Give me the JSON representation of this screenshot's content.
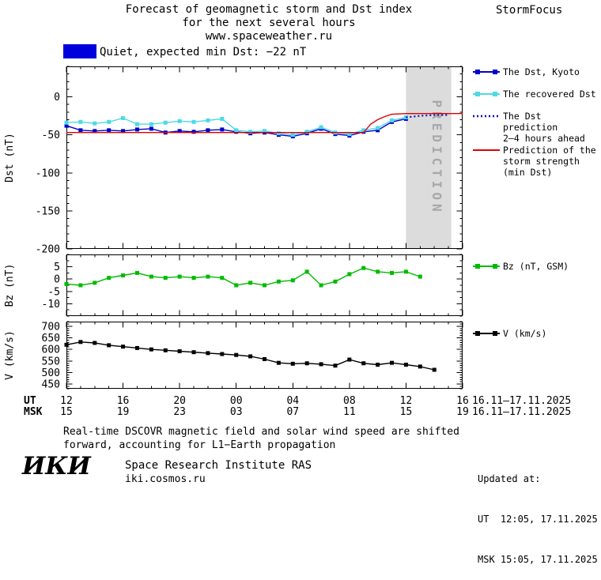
{
  "header": {
    "title_line1": "Forecast of geomagnetic storm and Dst index",
    "title_line2": "for the next several hours",
    "title_line3": "www.spaceweather.ru",
    "brand": "StormFocus"
  },
  "status": {
    "swatch_color": "#0000dd",
    "label": "Quiet, expected min Dst: −22 nT"
  },
  "legend": {
    "dst_kyoto": {
      "label": "The Dst, Kyoto",
      "color": "#0000cc",
      "style": "square-line"
    },
    "recovered": {
      "label": "The recovered Dst",
      "color": "#4dd9e8",
      "style": "square-line"
    },
    "prediction24": {
      "label": "The Dst prediction\n2–4 hours ahead",
      "color": "#0000cc",
      "style": "dotted"
    },
    "storm_strength": {
      "label": "Prediction of the\nstorm strength\n(min Dst)",
      "color": "#dd0000",
      "style": "line"
    },
    "bz": {
      "label": "Bz (nT, GSM)",
      "color": "#00bb00",
      "style": "square-line"
    },
    "v": {
      "label": "V (km/s)",
      "color": "#000000",
      "style": "square-line"
    }
  },
  "chart_data": [
    {
      "id": "dst",
      "type": "line",
      "title": "Dst index: observed, recovered and predicted",
      "ylabel": "Dst (nT)",
      "ylim": [
        -200,
        40
      ],
      "yticks": [
        0,
        -50,
        -100,
        -150,
        -200
      ],
      "yminor": 10,
      "xlim": [
        12,
        40
      ],
      "xticks": [
        12,
        16,
        20,
        24,
        28,
        32,
        36,
        40
      ],
      "prediction_band": {
        "x0": 36,
        "x1": 39.2,
        "label": "PREDICTION",
        "color": "#dcdcdc",
        "text_color": "#a8a8a8"
      },
      "series": [
        {
          "name": "The Dst, Kyoto",
          "color": "#0000cc",
          "marker": "square",
          "line": "solid",
          "x": [
            12,
            13,
            14,
            15,
            16,
            17,
            18,
            19,
            20,
            21,
            22,
            23,
            24,
            25,
            26,
            27,
            28,
            29,
            30,
            31,
            32,
            33,
            34,
            35,
            36
          ],
          "y": [
            -38,
            -44,
            -45,
            -44,
            -45,
            -43,
            -42,
            -47,
            -45,
            -46,
            -44,
            -43,
            -46,
            -48,
            -47,
            -50,
            -52,
            -48,
            -42,
            -49,
            -51,
            -46,
            -44,
            -33,
            -29
          ]
        },
        {
          "name": "The recovered Dst",
          "color": "#4dd9e8",
          "marker": "square",
          "line": "solid",
          "x": [
            12,
            13,
            14,
            15,
            16,
            17,
            18,
            19,
            20,
            21,
            22,
            23,
            24,
            25,
            26,
            27,
            28,
            29,
            30,
            31,
            32,
            33,
            34,
            35,
            36
          ],
          "y": [
            -34,
            -33,
            -35,
            -33,
            -28,
            -36,
            -36,
            -34,
            -32,
            -33,
            -31,
            -29,
            -44,
            -46,
            -45,
            -48,
            -50,
            -46,
            -40,
            -47,
            -49,
            -44,
            -41,
            -31,
            -27
          ]
        },
        {
          "name": "The Dst prediction 2–4 hours ahead",
          "color": "#0000cc",
          "marker": "none",
          "line": "dotted",
          "x": [
            36,
            37,
            38,
            39
          ],
          "y": [
            -27,
            -25,
            -24,
            -24
          ]
        },
        {
          "name": "Prediction of the storm strength (min Dst)",
          "color": "#dd0000",
          "marker": "none",
          "line": "solid",
          "x": [
            12,
            33,
            33.5,
            34,
            34.5,
            35,
            36,
            40
          ],
          "y": [
            -47,
            -47,
            -36,
            -30,
            -26,
            -23,
            -22,
            -22
          ]
        }
      ]
    },
    {
      "id": "bz",
      "type": "line",
      "title": "Interplanetary magnetic field Bz",
      "ylabel": "Bz (nT)",
      "ylim": [
        -15,
        10
      ],
      "yticks": [
        5,
        0,
        -5,
        -10
      ],
      "yminor": 2.5,
      "xlim": [
        12,
        40
      ],
      "xticks": [
        12,
        16,
        20,
        24,
        28,
        32,
        36,
        40
      ],
      "series": [
        {
          "name": "Bz (nT, GSM)",
          "color": "#00bb00",
          "marker": "square",
          "line": "solid",
          "x": [
            12,
            13,
            14,
            15,
            16,
            17,
            18,
            19,
            20,
            21,
            22,
            23,
            24,
            25,
            26,
            27,
            28,
            29,
            30,
            31,
            32,
            33,
            34,
            35,
            36,
            37
          ],
          "y": [
            -2,
            -2.5,
            -1.5,
            0.5,
            1.5,
            2.5,
            1,
            0.5,
            1,
            0.5,
            1,
            0.5,
            -2.5,
            -1.5,
            -2.5,
            -1,
            -0.5,
            3,
            -2.5,
            -1,
            2,
            4.5,
            3,
            2.5,
            3,
            1
          ]
        }
      ]
    },
    {
      "id": "v",
      "type": "line",
      "title": "Solar wind speed",
      "ylabel": "V (km/s)",
      "ylim": [
        430,
        720
      ],
      "yticks": [
        700,
        650,
        600,
        550,
        500,
        450
      ],
      "yminor": 10,
      "xlim": [
        12,
        40
      ],
      "xticks": [
        12,
        16,
        20,
        24,
        28,
        32,
        36,
        40
      ],
      "series": [
        {
          "name": "V (km/s)",
          "color": "#000000",
          "marker": "square",
          "line": "solid",
          "x": [
            12,
            13,
            14,
            15,
            16,
            17,
            18,
            19,
            20,
            21,
            22,
            23,
            24,
            25,
            26,
            27,
            28,
            29,
            30,
            31,
            32,
            33,
            34,
            35,
            36,
            37,
            38
          ],
          "y": [
            620,
            632,
            628,
            618,
            612,
            606,
            600,
            596,
            592,
            588,
            584,
            580,
            576,
            570,
            558,
            542,
            538,
            540,
            536,
            530,
            556,
            540,
            534,
            542,
            534,
            526,
            512
          ]
        }
      ]
    }
  ],
  "xaxis": {
    "ut_label": "UT",
    "msk_label": "MSK",
    "ut_ticks": [
      "12",
      "16",
      "20",
      "00",
      "04",
      "08",
      "12",
      "16"
    ],
    "msk_ticks": [
      "15",
      "19",
      "23",
      "03",
      "07",
      "11",
      "15",
      "19"
    ],
    "ut_date": "16.11–17.11.2025",
    "msk_date": "16.11–17.11.2025"
  },
  "footer": {
    "note_line1": "Real-time DSCOVR magnetic field and solar wind speed are shifted",
    "note_line2": "forward, accounting for L1−Earth propagation",
    "logo_text": "ИКИ",
    "institute": "Space Research Institute RAS",
    "site": "iki.cosmos.ru"
  },
  "updated": {
    "label": "Updated at:",
    "ut": "UT  12:05, 17.11.2025",
    "msk": "MSK 15:05, 17.11.2025"
  }
}
